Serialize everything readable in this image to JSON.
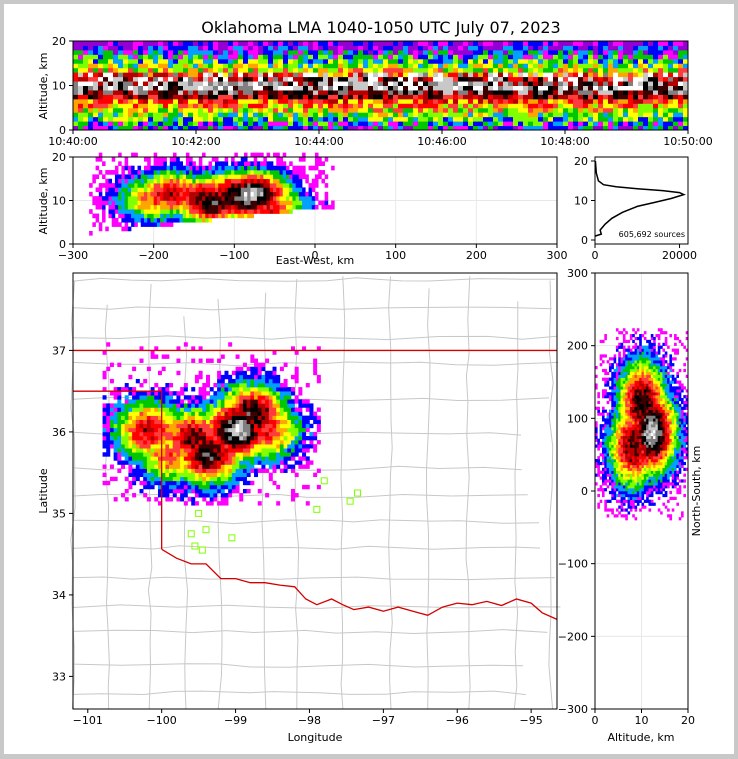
{
  "title": "Oklahoma LMA 1040-1050 UTC July 07, 2023",
  "colors": {
    "density": [
      "#9400d3",
      "#ff00ff",
      "#0000ff",
      "#00a0ff",
      "#00c800",
      "#80ff00",
      "#ffff00",
      "#ffa500",
      "#ff3c3c",
      "#ff0000",
      "#b40000",
      "#3c0000",
      "#000000",
      "#808080",
      "#c8c8c8",
      "#ffffff"
    ],
    "state_border": "#d40000",
    "county": "#c8c8c8",
    "station": "#80ff00"
  },
  "chart_data": [
    {
      "id": "time-height",
      "type": "heatmap",
      "xlabel": "",
      "ylabel": "Altitude, km",
      "x_ticks": [
        "10:40:00",
        "10:42:00",
        "10:44:00",
        "10:46:00",
        "10:48:00",
        "10:50:00"
      ],
      "y_ticks": [
        "0",
        "10",
        "20"
      ],
      "xlim": [
        "10:40:00",
        "10:50:00"
      ],
      "ylim": [
        0,
        20
      ]
    },
    {
      "id": "ew-altitude",
      "type": "heatmap",
      "xlabel": "East-West, km",
      "ylabel": "Altitude, km",
      "x_ticks": [
        "−300",
        "−200",
        "−100",
        "0",
        "100",
        "200",
        "300"
      ],
      "y_ticks": [
        "0",
        "10",
        "20"
      ],
      "xlim": [
        -300,
        300
      ],
      "ylim": [
        0,
        20
      ],
      "cells": [
        {
          "x": -200,
          "y": 10,
          "v": 8
        },
        {
          "x": -180,
          "y": 11,
          "v": 10
        },
        {
          "x": -140,
          "y": 10,
          "v": 11
        },
        {
          "x": -130,
          "y": 9,
          "v": 12
        },
        {
          "x": -100,
          "y": 11,
          "v": 12
        },
        {
          "x": -90,
          "y": 10,
          "v": 13
        },
        {
          "x": -80,
          "y": 11,
          "v": 14
        },
        {
          "x": -60,
          "y": 8,
          "v": 9
        }
      ]
    },
    {
      "id": "altitude-histogram",
      "type": "line",
      "x_ticks": [
        "0",
        "20000"
      ],
      "y_ticks": [
        "0",
        "10",
        "20"
      ],
      "xlim": [
        0,
        22000
      ],
      "ylim": [
        0,
        20
      ],
      "annotation": "605,692 sources",
      "series": [
        {
          "x": [
            0,
            1500,
            1200,
            2400,
            4000,
            6500,
            10000,
            14000,
            18000,
            21000,
            20000,
            16000,
            10000,
            5000,
            2000,
            800,
            300,
            100
          ],
          "y": [
            1,
            1.5,
            2.5,
            4,
            5.5,
            7,
            8.5,
            9.5,
            10.5,
            11.5,
            12,
            12.5,
            13,
            13.5,
            14,
            15,
            17,
            20
          ]
        }
      ]
    },
    {
      "id": "plan-view",
      "type": "heatmap",
      "xlabel": "Longitude",
      "ylabel": "Latitude",
      "x_ticks": [
        "−101",
        "−100",
        "−99",
        "−98",
        "−97",
        "−96",
        "−95"
      ],
      "y_ticks": [
        "33",
        "34",
        "35",
        "36",
        "37"
      ],
      "xlim": [
        -101.2,
        -94.65
      ],
      "ylim": [
        32.6,
        37.95
      ],
      "cells": [
        {
          "lon": -100.2,
          "lat": 36.0,
          "v": 10
        },
        {
          "lon": -99.9,
          "lat": 35.7,
          "v": 8
        },
        {
          "lon": -99.6,
          "lat": 35.9,
          "v": 11
        },
        {
          "lon": -99.4,
          "lat": 35.7,
          "v": 12
        },
        {
          "lon": -99.0,
          "lat": 36.0,
          "v": 14
        },
        {
          "lon": -98.8,
          "lat": 36.2,
          "v": 12
        },
        {
          "lon": -98.6,
          "lat": 36.0,
          "v": 9
        }
      ],
      "stations": [
        {
          "lon": -99.5,
          "lat": 35.0
        },
        {
          "lon": -99.4,
          "lat": 34.8
        },
        {
          "lon": -99.6,
          "lat": 34.75
        },
        {
          "lon": -99.55,
          "lat": 34.6
        },
        {
          "lon": -99.45,
          "lat": 34.55
        },
        {
          "lon": -99.05,
          "lat": 34.7
        },
        {
          "lon": -97.9,
          "lat": 35.05
        },
        {
          "lon": -97.8,
          "lat": 35.4
        },
        {
          "lon": -97.45,
          "lat": 35.15
        },
        {
          "lon": -97.35,
          "lat": 35.25
        }
      ]
    },
    {
      "id": "ns-altitude",
      "type": "heatmap",
      "xlabel": "Altitude, km",
      "ylabel": "North-South, km",
      "x_ticks": [
        "0",
        "10",
        "20"
      ],
      "y_ticks": [
        "−300",
        "−200",
        "−100",
        "0",
        "100",
        "200",
        "300"
      ],
      "xlim": [
        0,
        20
      ],
      "ylim": [
        -300,
        300
      ],
      "cells": [
        {
          "x": 10,
          "y": 120,
          "v": 12
        },
        {
          "x": 12,
          "y": 80,
          "v": 14
        },
        {
          "x": 8,
          "y": 60,
          "v": 11
        }
      ]
    }
  ]
}
